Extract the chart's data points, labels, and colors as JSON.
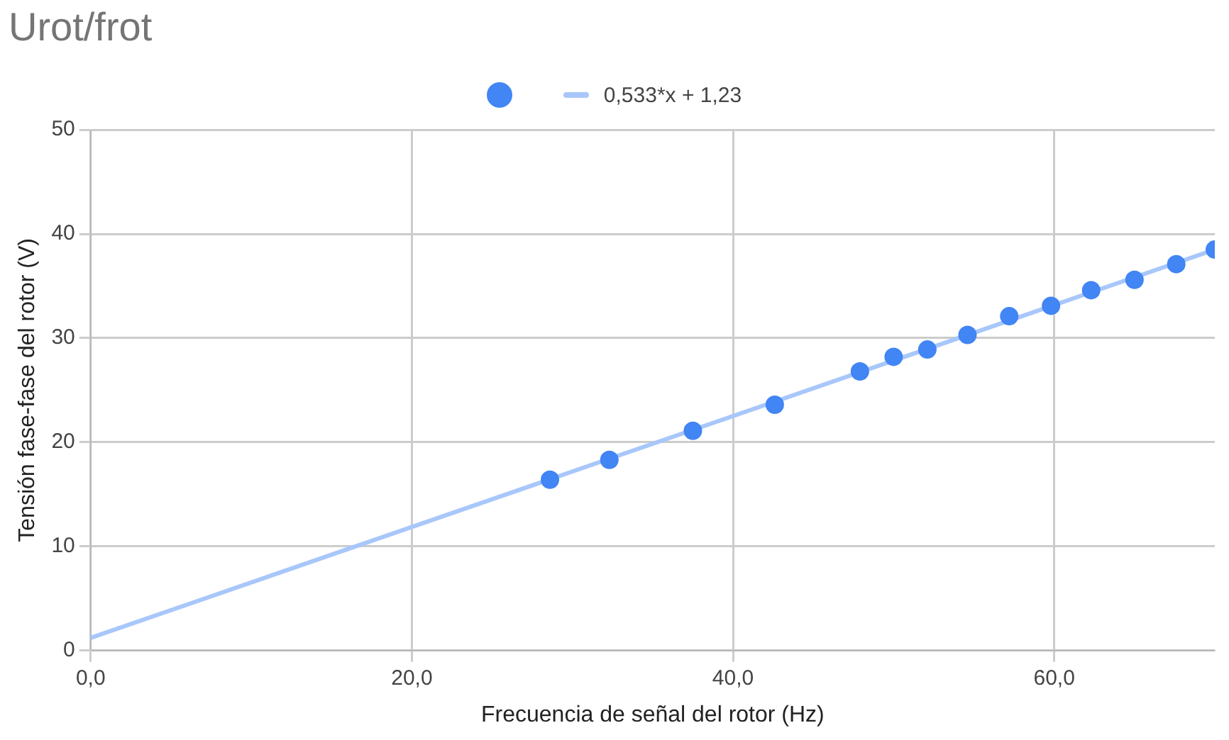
{
  "chart_data": {
    "type": "scatter",
    "title": "Urot/frot",
    "xlabel": "Frecuencia de señal del rotor (Hz)",
    "ylabel": "Tensión fase-fase del rotor (V)",
    "xlim": [
      0,
      70
    ],
    "xticks": [
      {
        "value": 0,
        "label": "0,0"
      },
      {
        "value": 20,
        "label": "20,0"
      },
      {
        "value": 40,
        "label": "40,0"
      },
      {
        "value": 60,
        "label": "60,0"
      }
    ],
    "ylim": [
      0,
      50
    ],
    "yticks": [
      0,
      10,
      20,
      30,
      40,
      50
    ],
    "grid": true,
    "legend": "top",
    "series": [
      {
        "type": "scatter",
        "marker": "circle",
        "color": "#4285f4",
        "x": [
          28.6,
          32.3,
          37.5,
          42.6,
          47.9,
          50.0,
          52.1,
          54.6,
          57.2,
          59.8,
          62.3,
          65.0,
          67.6,
          70.0
        ],
        "values": [
          16.4,
          18.3,
          21.1,
          23.6,
          26.8,
          28.2,
          28.9,
          30.3,
          32.1,
          33.1,
          34.6,
          35.6,
          37.1,
          38.5
        ]
      },
      {
        "type": "line",
        "name": "0,533*x + 1,23",
        "color": "#a8c7fa",
        "x": [
          0,
          70
        ],
        "values": [
          1.2,
          38.5
        ]
      }
    ]
  }
}
